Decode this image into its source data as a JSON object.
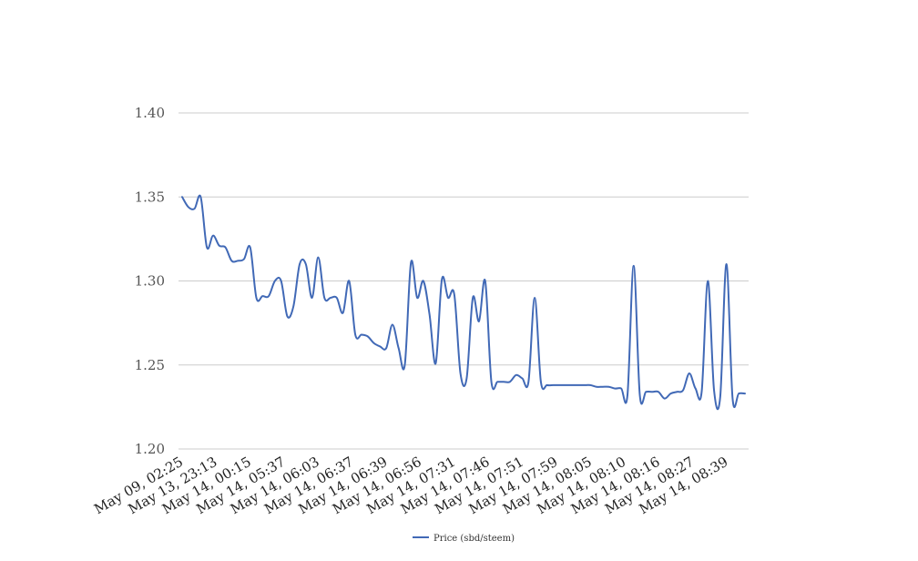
{
  "chart_data": {
    "type": "line",
    "title": "",
    "xlabel": "",
    "ylabel": "",
    "ylim": [
      1.2,
      1.4
    ],
    "yticks": [
      "1.40",
      "1.35",
      "1.30",
      "1.25",
      "1.20"
    ],
    "grid": true,
    "legend_position": "bottom-center",
    "x_tick_labels": [
      "May 09, 02:25",
      "May 13, 23:13",
      "May 14, 00:15",
      "May 14, 05:37",
      "May 14, 06:03",
      "May 14, 06:37",
      "May 14, 06:39",
      "May 14, 06:56",
      "May 14, 07:31",
      "May 14, 07:46",
      "May 14, 07:51",
      "May 14, 07:59",
      "May 14, 08:05",
      "May 14, 08:10",
      "May 14, 08:16",
      "May 14, 08:27",
      "May 14, 08:39"
    ],
    "series": [
      {
        "name": "Price (sbd/steem)",
        "color": "#4169b6",
        "values": [
          1.35,
          1.344,
          1.343,
          1.35,
          1.32,
          1.327,
          1.321,
          1.32,
          1.312,
          1.312,
          1.313,
          1.32,
          1.29,
          1.291,
          1.291,
          1.3,
          1.3,
          1.279,
          1.285,
          1.31,
          1.31,
          1.29,
          1.314,
          1.29,
          1.29,
          1.29,
          1.281,
          1.3,
          1.268,
          1.268,
          1.267,
          1.263,
          1.261,
          1.26,
          1.274,
          1.26,
          1.25,
          1.311,
          1.29,
          1.3,
          1.28,
          1.251,
          1.301,
          1.29,
          1.292,
          1.245,
          1.242,
          1.29,
          1.276,
          1.3,
          1.24,
          1.24,
          1.24,
          1.24,
          1.244,
          1.242,
          1.24,
          1.29,
          1.24,
          1.238,
          1.238,
          1.238,
          1.238,
          1.238,
          1.238,
          1.238,
          1.238,
          1.237,
          1.237,
          1.237,
          1.236,
          1.236,
          1.232,
          1.309,
          1.232,
          1.234,
          1.234,
          1.234,
          1.23,
          1.233,
          1.234,
          1.235,
          1.245,
          1.236,
          1.234,
          1.3,
          1.235,
          1.231,
          1.31,
          1.23,
          1.233,
          1.233
        ]
      }
    ]
  }
}
